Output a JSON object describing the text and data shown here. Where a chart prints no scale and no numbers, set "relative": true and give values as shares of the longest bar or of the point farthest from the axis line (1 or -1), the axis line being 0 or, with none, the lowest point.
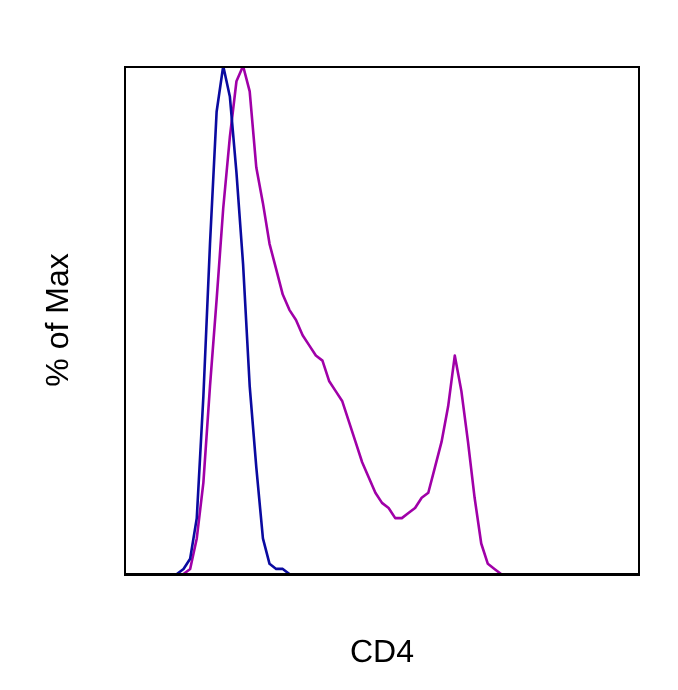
{
  "chart_data": {
    "type": "line",
    "xlabel": "CD4",
    "ylabel": "% of Max",
    "relative": true,
    "marker": "none",
    "categories": [
      null,
      null,
      null,
      null,
      null,
      null,
      null,
      null,
      null,
      null,
      null,
      null,
      null,
      null,
      null,
      null,
      null,
      null,
      null,
      null,
      null,
      null,
      null,
      null,
      null,
      null,
      null,
      null,
      null,
      null,
      null,
      null,
      null,
      null,
      null,
      null,
      null,
      null,
      null,
      null,
      null,
      null,
      null,
      null,
      null,
      null,
      null,
      null,
      null,
      null,
      null,
      null,
      null,
      null,
      null,
      null,
      null,
      null,
      null,
      null,
      null,
      null,
      null,
      null,
      null,
      null,
      null,
      null,
      null,
      null,
      null,
      null,
      null,
      null,
      null,
      null,
      null,
      null,
      null
    ],
    "series": [
      {
        "color": "#a000a8",
        "values": [
          null,
          null,
          null,
          null,
          null,
          null,
          null,
          null,
          null,
          0,
          0.01,
          0.07,
          0.18,
          0.37,
          0.54,
          0.72,
          0.86,
          0.97,
          1.0,
          0.95,
          0.8,
          0.73,
          0.65,
          0.6,
          0.55,
          0.52,
          0.5,
          0.47,
          0.45,
          0.43,
          0.42,
          0.38,
          0.36,
          0.34,
          0.3,
          0.26,
          0.22,
          0.19,
          0.16,
          0.14,
          0.13,
          0.11,
          0.11,
          0.12,
          0.13,
          0.15,
          0.16,
          0.21,
          0.26,
          0.33,
          0.43,
          0.36,
          0.26,
          0.15,
          0.06,
          0.02,
          0.01,
          0,
          null,
          null,
          null,
          null,
          null,
          null,
          null,
          null,
          null,
          null,
          null,
          null,
          null,
          null,
          null,
          null,
          null,
          null,
          null,
          null,
          null
        ]
      },
      {
        "color": "#0a0aa0",
        "values": [
          null,
          null,
          null,
          null,
          null,
          null,
          null,
          null,
          0,
          0.01,
          0.03,
          0.11,
          0.35,
          0.65,
          0.91,
          1.0,
          0.94,
          0.79,
          0.61,
          0.37,
          0.21,
          0.07,
          0.02,
          0.01,
          0.01,
          0,
          null,
          null,
          null,
          null,
          null,
          null,
          null,
          null,
          null,
          null,
          null,
          null,
          null,
          null,
          null,
          null,
          null,
          null,
          null,
          null,
          null,
          null,
          null,
          null,
          null,
          null,
          null,
          null,
          null,
          null,
          null,
          null,
          null,
          null,
          null,
          null,
          null,
          null,
          null,
          null,
          null,
          null,
          null,
          null,
          null,
          null,
          null,
          null,
          null,
          null,
          null,
          null,
          null
        ]
      }
    ]
  }
}
